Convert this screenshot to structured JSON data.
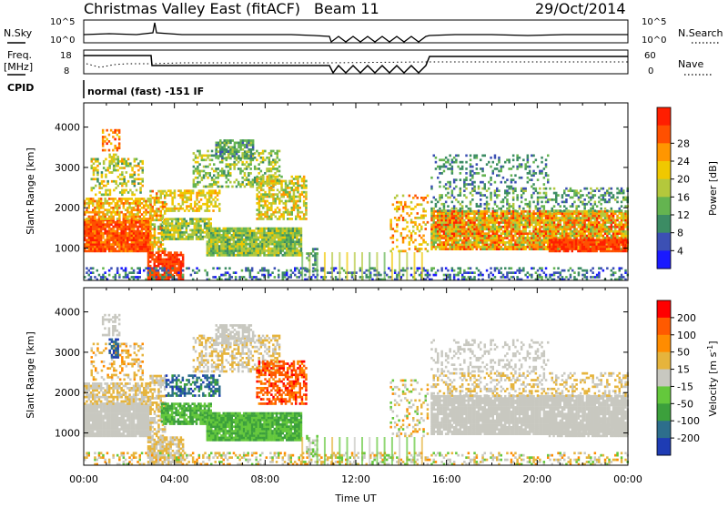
{
  "header": {
    "title": "Christmas Valley East (fitACF)",
    "beam": "Beam 11",
    "date": "29/Oct/2014"
  },
  "panels": {
    "nsky": {
      "left_label": "N.Sky",
      "right_label": "N.Search",
      "left_ticks": [
        "10^5",
        "10^0"
      ],
      "right_ticks": [
        "10^5",
        "10^0"
      ]
    },
    "freq": {
      "left_label_1": "Freq.",
      "left_label_2": "[MHz]",
      "left_ticks": [
        "18",
        "8"
      ],
      "right_label": "Nave",
      "right_ticks": [
        "60",
        "0"
      ]
    },
    "cpid": {
      "label": "CPID",
      "mode": "normal (fast) -151 IF"
    }
  },
  "chart_data": [
    {
      "type": "heatmap",
      "parameter": "Power",
      "ylabel": "Slant Range [km]",
      "xlabel": "Time UT",
      "x_ticks": [
        "00:00",
        "04:00",
        "08:00",
        "12:00",
        "16:00",
        "20:00",
        "00:00"
      ],
      "y_ticks": [
        1000,
        2000,
        3000,
        4000
      ],
      "ylim": [
        200,
        4600
      ],
      "colorbar": {
        "label": "Power [dB]",
        "ticks": [
          "4",
          "8",
          "12",
          "16",
          "20",
          "24",
          "28"
        ],
        "colors": [
          "#1a1aff",
          "#3c50b4",
          "#3c8c64",
          "#64b450",
          "#b4c83c",
          "#f0c800",
          "#ff9600",
          "#ff5000",
          "#ff1e00"
        ]
      }
    },
    {
      "type": "heatmap",
      "parameter": "Velocity",
      "ylabel": "Slant Range [km]",
      "xlabel": "Time UT",
      "x_ticks": [
        "00:00",
        "04:00",
        "08:00",
        "12:00",
        "16:00",
        "20:00",
        "00:00"
      ],
      "y_ticks": [
        1000,
        2000,
        3000,
        4000
      ],
      "ylim": [
        200,
        4600
      ],
      "colorbar": {
        "label": "Velocity [m s^-1]",
        "ticks": [
          "200",
          "100",
          "50",
          "15",
          "-15",
          "-50",
          "-100",
          "-200"
        ],
        "colors": [
          "#1e3cb4",
          "#2d6e8c",
          "#3ca03c",
          "#64c83c",
          "#c8c8c0",
          "#e6b43c",
          "#ff8c00",
          "#ff5a00",
          "#ff0000"
        ]
      }
    }
  ],
  "footer": {
    "xlabel": "Time UT"
  }
}
